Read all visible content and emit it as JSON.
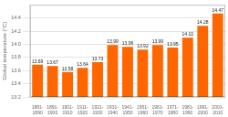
{
  "chart_data": {
    "type": "bar",
    "categories": [
      "1881-\n1890",
      "1891-\n1900",
      "1901-\n1910",
      "1911-\n1920",
      "1921-\n1930",
      "1931-\n1940",
      "1941-\n1950",
      "1951-\n1960",
      "1961-\n1970",
      "1971-\n1980",
      "1981-\n1990",
      "1991-\n2000",
      "2001-\n2010"
    ],
    "values": [
      13.69,
      13.67,
      13.58,
      13.64,
      13.73,
      13.99,
      13.96,
      13.92,
      13.99,
      13.95,
      14.1,
      14.28,
      14.47
    ],
    "value_labels": [
      "13.69",
      "13.67",
      "13.58",
      "13.64",
      "13.73",
      "13.99",
      "13.96",
      "13.92",
      "13.99",
      "13.95",
      "14.10",
      "14.28",
      "14.47"
    ],
    "data_labels": true,
    "y_label": "Global temperature (°C)",
    "color": "#ff6600",
    "ylim": [
      13.2,
      14.6
    ],
    "yticks": [
      13.2,
      13.4,
      13.6,
      13.8,
      {
        "value": 14.0,
        "label": "14.0"
      },
      14.2,
      14.4
    ],
    "grid": true
  }
}
